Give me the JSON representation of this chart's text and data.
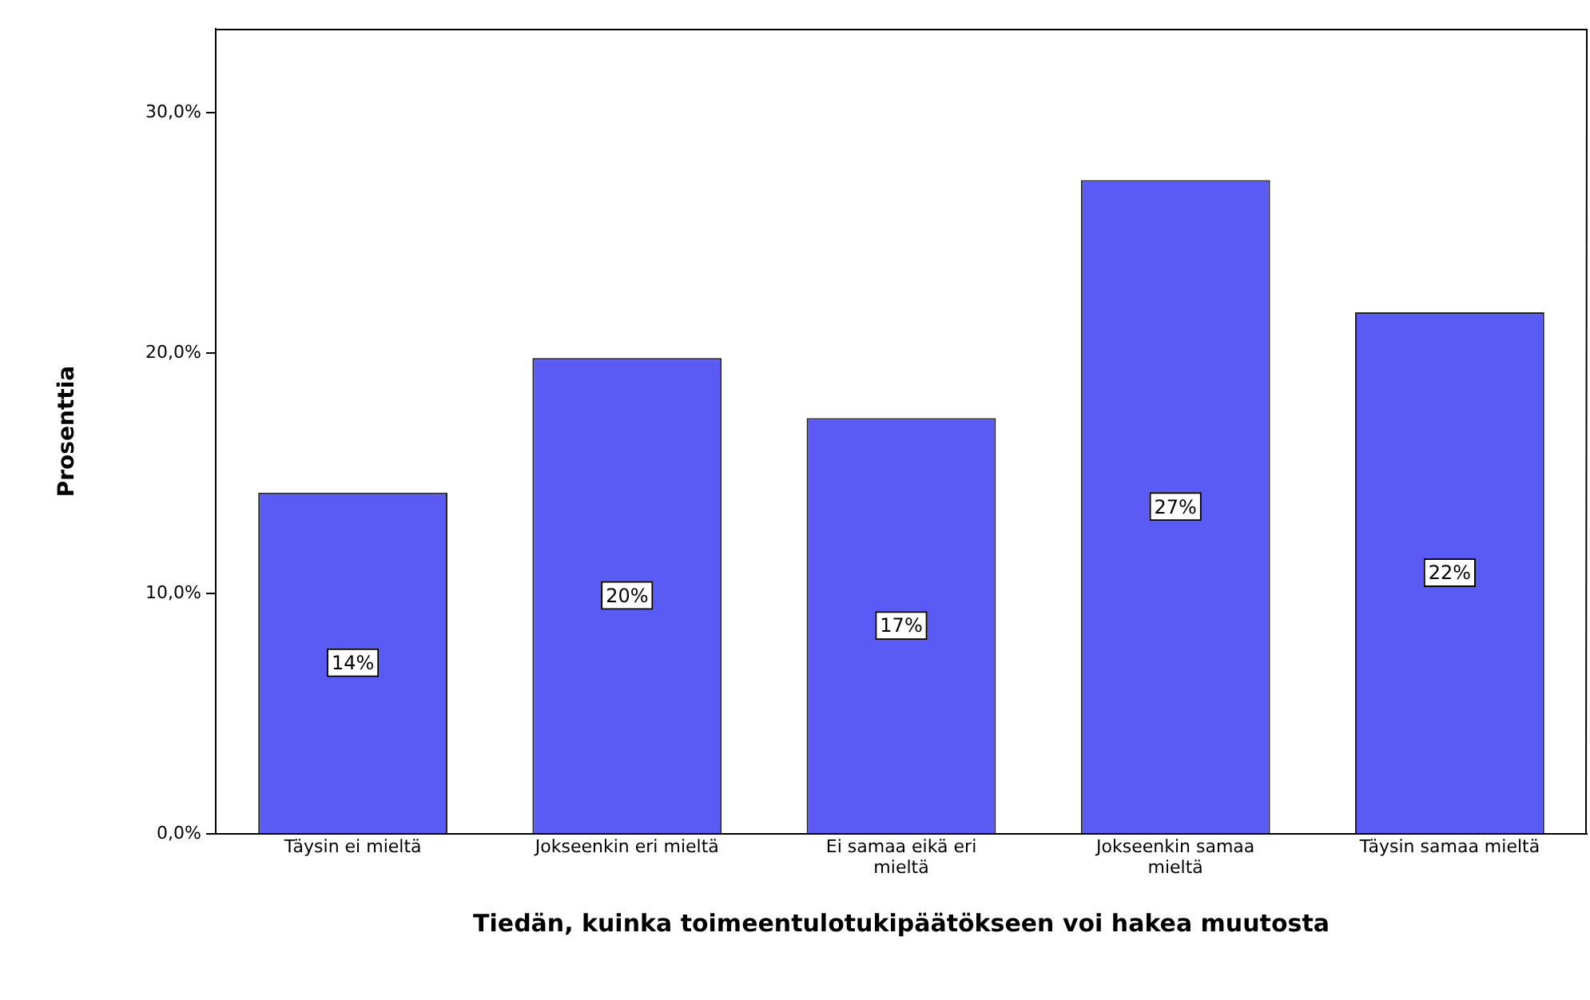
{
  "chart_data": {
    "type": "bar",
    "xlabel": "Tiedän, kuinka toimeentulotukipäätökseen voi hakea muutosta",
    "ylabel": "Prosenttia",
    "categories": [
      "Täysin ei mieltä",
      "Jokseenkin eri mieltä",
      "Ei samaa eikä eri mieltä",
      "Jokseenkin samaa mieltä",
      "Täysin samaa mieltä"
    ],
    "values": [
      14.2,
      19.8,
      17.3,
      27.2,
      21.7
    ],
    "value_labels": [
      "14%",
      "20%",
      "17%",
      "27%",
      "22%"
    ],
    "color": "#5a5af5",
    "ylim": [
      0,
      33.5
    ],
    "yticks": [
      {
        "value": 0,
        "label": "0,0%"
      },
      {
        "value": 10,
        "label": "10,0%"
      },
      {
        "value": 20,
        "label": "20,0%"
      },
      {
        "value": 30,
        "label": "30,0%"
      }
    ],
    "grid": false,
    "legend": false
  }
}
